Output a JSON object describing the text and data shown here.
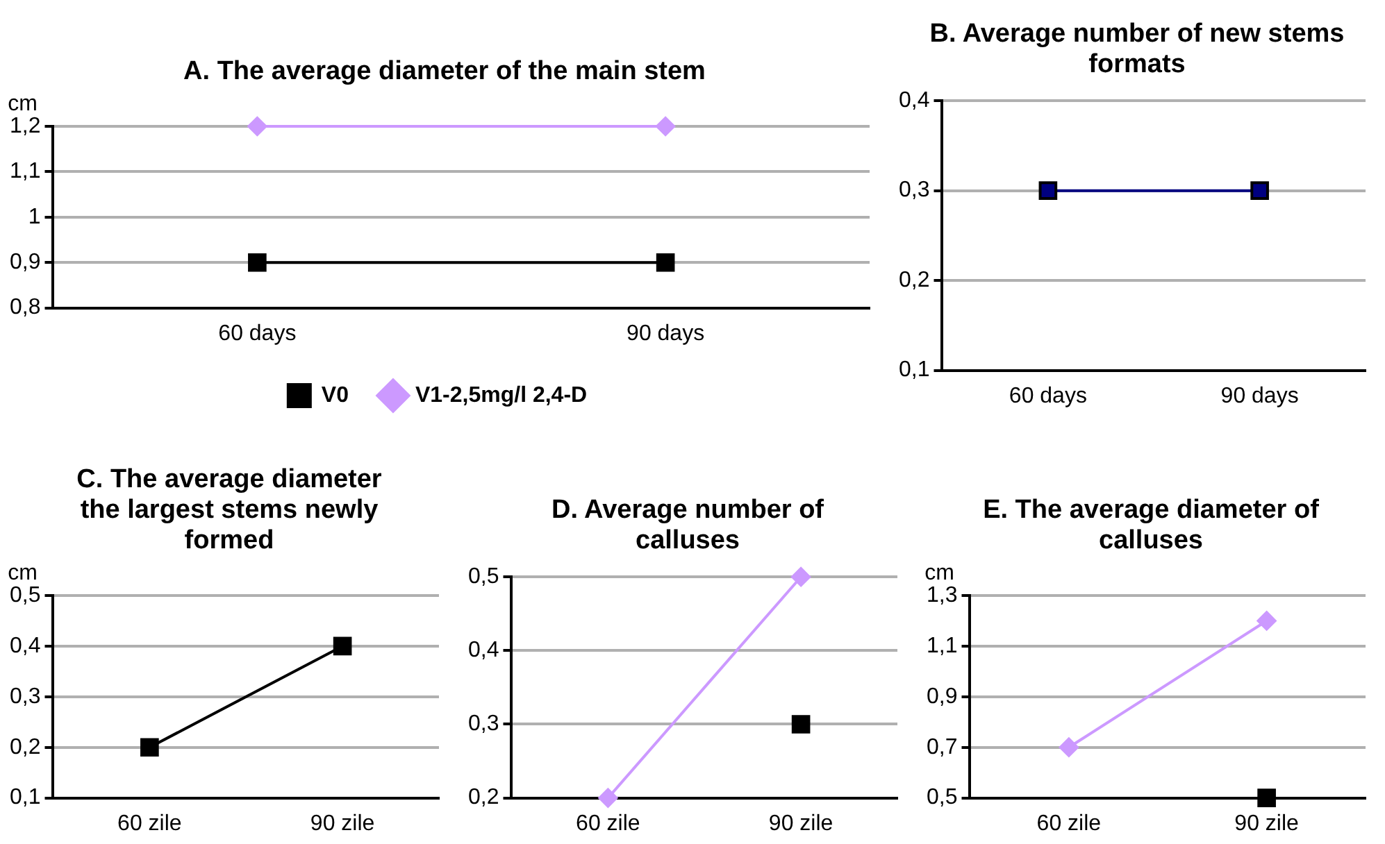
{
  "chart_data": [
    {
      "type": "line",
      "title": "A.  The average diameter of the main stem",
      "ylabel": "cm",
      "categories": [
        "60 days",
        "90 days"
      ],
      "series": [
        {
          "name": "V0",
          "color": "#000000",
          "marker": "square",
          "values": [
            0.9,
            0.9
          ]
        },
        {
          "name": "V1-2,5mg/l 2,4-D",
          "color": "#cc99ff",
          "marker": "diamond",
          "values": [
            1.2,
            1.2
          ]
        }
      ],
      "ylim": [
        0.8,
        1.2
      ],
      "yticks": [
        {
          "value": 0.8,
          "label": "0,8"
        },
        {
          "value": 0.9,
          "label": "0,9"
        },
        1,
        {
          "value": 1.1,
          "label": "1,1"
        },
        {
          "value": 1.2,
          "label": "1,2"
        }
      ],
      "grid": "y",
      "legend": "bottom"
    },
    {
      "type": "line",
      "title": "B. Average number of new stems formats",
      "categories": [
        "60 days",
        "90 days"
      ],
      "series": [
        {
          "color": "#000080",
          "marker": "square",
          "values": [
            0.3,
            0.3
          ]
        }
      ],
      "ylim": [
        0.1,
        0.4
      ],
      "yticks": [
        {
          "value": 0.1,
          "label": "0,1"
        },
        {
          "value": 0.2,
          "label": "0,2"
        },
        {
          "value": 0.3,
          "label": "0,3"
        },
        {
          "value": 0.4,
          "label": "0,4"
        }
      ],
      "grid": "y"
    },
    {
      "type": "line",
      "title": "C. The average diameter the largest stems newly formed",
      "ylabel": "cm",
      "categories": [
        "60 zile",
        "90 zile"
      ],
      "series": [
        {
          "color": "#000000",
          "marker": "square",
          "values": [
            0.2,
            0.4
          ]
        }
      ],
      "ylim": [
        0.1,
        0.5
      ],
      "yticks": [
        {
          "value": 0.1,
          "label": "0,1"
        },
        {
          "value": 0.2,
          "label": "0,2"
        },
        {
          "value": 0.3,
          "label": "0,3"
        },
        {
          "value": 0.4,
          "label": "0,4"
        },
        {
          "value": 0.5,
          "label": "0,5"
        }
      ],
      "grid": "y"
    },
    {
      "type": "line",
      "title": "D. Average number of calluses",
      "categories": [
        "60 zile",
        "90 zile"
      ],
      "series": [
        {
          "color": "#000000",
          "marker": "square",
          "values": [
            null,
            0.3
          ]
        },
        {
          "color": "#cc99ff",
          "marker": "diamond",
          "values": [
            0.2,
            0.5
          ]
        }
      ],
      "ylim": [
        0.2,
        0.5
      ],
      "yticks": [
        {
          "value": 0.2,
          "label": "0,2"
        },
        {
          "value": 0.3,
          "label": "0,3"
        },
        {
          "value": 0.4,
          "label": "0,4"
        },
        {
          "value": 0.5,
          "label": "0,5"
        }
      ],
      "grid": "y"
    },
    {
      "type": "line",
      "title": "E. The average diameter of calluses",
      "ylabel": "cm",
      "categories": [
        "60 zile",
        "90 zile"
      ],
      "series": [
        {
          "color": "#000000",
          "marker": "square",
          "values": [
            null,
            0.5
          ]
        },
        {
          "color": "#cc99ff",
          "marker": "diamond",
          "values": [
            0.7,
            1.2
          ]
        }
      ],
      "ylim": [
        0.5,
        1.3
      ],
      "yticks": [
        {
          "value": 0.5,
          "label": "0,5"
        },
        {
          "value": 0.7,
          "label": "0,7"
        },
        {
          "value": 0.9,
          "label": "0,9"
        },
        {
          "value": 1.1,
          "label": "1,1"
        },
        {
          "value": 1.3,
          "label": "1,3"
        }
      ],
      "grid": "y"
    }
  ]
}
